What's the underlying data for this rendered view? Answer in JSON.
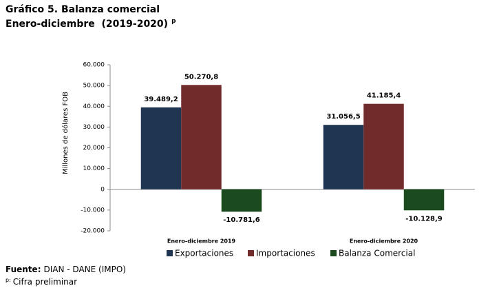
{
  "chart_data": {
    "type": "bar",
    "title": "Gráfico 5. Balanza comercial",
    "subtitle": "Enero-diciembre  (2019-2020)",
    "subtitle_mark": "p",
    "y_label": "Millones de dólares FOB",
    "categories": [
      "Enero-diciembre 2019",
      "Enero-diciembre 2020"
    ],
    "series": [
      {
        "name": "Exportaciones",
        "color": "#1f3552",
        "values": [
          39489.2,
          31056.5
        ],
        "value_labels": [
          "39.489,2",
          "31.056,5"
        ]
      },
      {
        "name": "Importaciones",
        "color": "#722b2b",
        "values": [
          50270.8,
          41185.4
        ],
        "value_labels": [
          "50.270,8",
          "41.185,4"
        ]
      },
      {
        "name": "Balanza Comercial",
        "color": "#1b4a1e",
        "values": [
          -10781.6,
          -10128.9
        ],
        "value_labels": [
          "-10.781,6",
          "-10.128,9"
        ]
      }
    ],
    "ylim": [
      -20000,
      60000
    ],
    "yticks": [
      {
        "value": -20000,
        "label": "-20.000"
      },
      {
        "value": -10000,
        "label": "-10.000"
      },
      0,
      {
        "value": 10000,
        "label": "10.000"
      },
      {
        "value": 20000,
        "label": "20.000"
      },
      {
        "value": 30000,
        "label": "30.000"
      },
      {
        "value": 40000,
        "label": "40.000"
      },
      {
        "value": 50000,
        "label": "50.000"
      },
      {
        "value": 60000,
        "label": "60.000"
      }
    ],
    "legend": "bottom",
    "source_label": "Fuente:",
    "source": "DIAN - DANE (IMPO)",
    "note_mark": "p:",
    "note": "Cifra preliminar"
  }
}
